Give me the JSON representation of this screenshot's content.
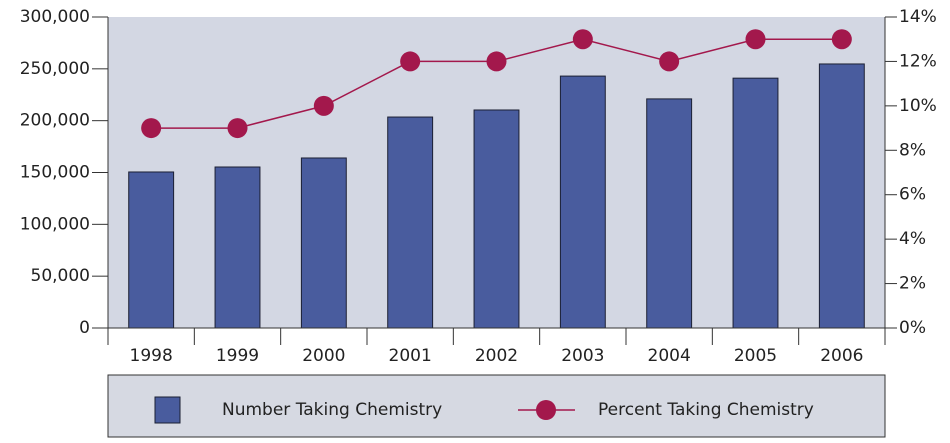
{
  "chart_data": {
    "type": "bar",
    "categories": [
      "1998",
      "1999",
      "2000",
      "2001",
      "2002",
      "2003",
      "2004",
      "2005",
      "2006"
    ],
    "series": [
      {
        "name": "Number Taking Chemistry",
        "type": "bar",
        "color": "#495c9e",
        "values": [
          150500,
          155300,
          164000,
          203500,
          210300,
          243000,
          221000,
          241000,
          254700
        ]
      },
      {
        "name": "Percent Taking Chemistry",
        "type": "line",
        "axis": "y2",
        "color": "#a3184c",
        "values": [
          9,
          9,
          10,
          12,
          12,
          13,
          12,
          13,
          13
        ]
      }
    ],
    "ylim": [
      0,
      300000
    ],
    "yticks": [
      0,
      {
        "value": 50000,
        "label": "50,000"
      },
      {
        "value": 100000,
        "label": "100,000"
      },
      {
        "value": 150000,
        "label": "150,000"
      },
      {
        "value": 200000,
        "label": "200,000"
      },
      {
        "value": 250000,
        "label": "250,000"
      },
      {
        "value": 300000,
        "label": "300,000"
      }
    ],
    "y2lim": [
      0,
      14
    ],
    "y2ticks": [
      {
        "value": 0,
        "label": "0%"
      },
      {
        "value": 2,
        "label": "2%"
      },
      {
        "value": 4,
        "label": "4%"
      },
      {
        "value": 6,
        "label": "6%"
      },
      {
        "value": 8,
        "label": "8%"
      },
      {
        "value": 10,
        "label": "10%"
      },
      {
        "value": 12,
        "label": "12%"
      },
      {
        "value": 14,
        "label": "14%"
      }
    ],
    "legend": "bottom"
  }
}
